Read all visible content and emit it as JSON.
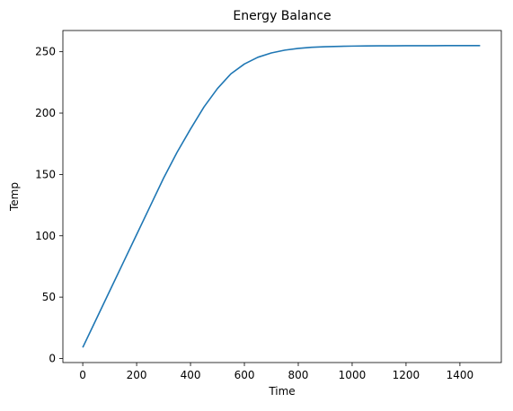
{
  "chart_data": {
    "type": "line",
    "title": "Energy Balance",
    "xlabel": "Time",
    "ylabel": "Temp",
    "xlim": [
      -73.75,
      1553.75
    ],
    "ylim": [
      -3.3,
      267.3
    ],
    "xticks": [
      0,
      200,
      400,
      600,
      800,
      1000,
      1200,
      1400
    ],
    "yticks": [
      0,
      50,
      100,
      150,
      200,
      250
    ],
    "grid": false,
    "series": [
      {
        "color": "#1f77b4",
        "x": [
          0,
          50,
          100,
          150,
          200,
          250,
          300,
          350,
          400,
          450,
          500,
          550,
          600,
          650,
          700,
          750,
          800,
          850,
          900,
          950,
          1000,
          1050,
          1100,
          1150,
          1200,
          1250,
          1300,
          1350,
          1400,
          1475
        ],
        "y": [
          9,
          32,
          55,
          78,
          101,
          124,
          147,
          168,
          187,
          205,
          220,
          232,
          240,
          245.5,
          249,
          251.3,
          252.7,
          253.6,
          254.1,
          254.4,
          254.6,
          254.7,
          254.8,
          254.8,
          254.9,
          254.9,
          254.9,
          255,
          255,
          255
        ]
      }
    ]
  }
}
